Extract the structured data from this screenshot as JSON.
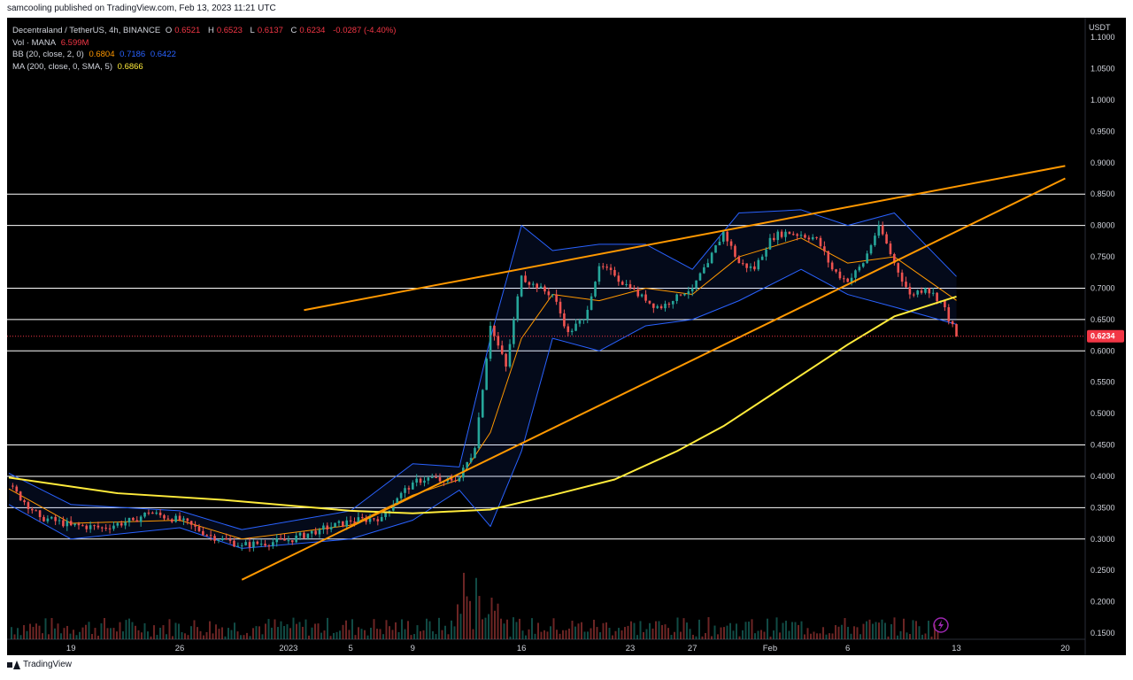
{
  "header": {
    "published_by": "samcooling published on TradingView.com, Feb 13, 2023 11:21 UTC"
  },
  "legend": {
    "symbol": "Decentraland / TetherUS, 4h, BINANCE",
    "ohlc": {
      "o_label": "O",
      "o": "0.6521",
      "h_label": "H",
      "h": "0.6523",
      "l_label": "L",
      "l": "0.6137",
      "c_label": "C",
      "c": "0.6234",
      "change": "-0.0287 (-4.40%)"
    },
    "volume": {
      "label": "Vol · MANA",
      "value": "6.599M"
    },
    "bb": {
      "label": "BB (20, close, 2, 0)",
      "basis": "0.6804",
      "upper": "0.7186",
      "lower": "0.6422"
    },
    "ma": {
      "label": "MA (200, close, 0, SMA, 5)",
      "value": "0.6866"
    }
  },
  "footer": {
    "brand": "TradingView"
  },
  "colors": {
    "background": "#000000",
    "up": "#26a69a",
    "down": "#ef5350",
    "bb_basis": "#ff9800",
    "bb_band": "#2962ff",
    "ma": "#ffeb3b",
    "trendline": "#ff9800",
    "hline": "#ffffff",
    "price_tag": "#f23645"
  },
  "chart_data": {
    "type": "candlestick",
    "currency": "USDT",
    "x_tick_labels": [
      "19",
      "26",
      "2023",
      "5",
      "9",
      "16",
      "23",
      "27",
      "Feb",
      "6",
      "13",
      "20"
    ],
    "y_ticks": [
      "1.1000",
      "1.0500",
      "1.0000",
      "0.9500",
      "0.9000",
      "0.8500",
      "0.8000",
      "0.7500",
      "0.7000",
      "0.6500",
      "0.6000",
      "0.5500",
      "0.5000",
      "0.4500",
      "0.4000",
      "0.3500",
      "0.3000",
      "0.2500",
      "0.2000",
      "0.1500"
    ],
    "ylim": [
      0.15,
      1.12
    ],
    "last_price": "0.6234",
    "horizontal_levels": [
      "0.8500",
      "0.8000",
      "0.7000",
      "0.6500",
      "0.6000",
      "0.4500",
      "0.4000",
      "0.3500",
      "0.3000"
    ],
    "close_series": [
      {
        "date": "Dec 15",
        "close": 0.385
      },
      {
        "date": "Dec 17",
        "close": 0.335
      },
      {
        "date": "Dec 19",
        "close": 0.322
      },
      {
        "date": "Dec 21",
        "close": 0.318
      },
      {
        "date": "Dec 23",
        "close": 0.33
      },
      {
        "date": "Dec 24",
        "close": 0.342
      },
      {
        "date": "Dec 26",
        "close": 0.33
      },
      {
        "date": "Dec 28",
        "close": 0.305
      },
      {
        "date": "Dec 30",
        "close": 0.29
      },
      {
        "date": "Jan 1",
        "close": 0.298
      },
      {
        "date": "Jan 3",
        "close": 0.315
      },
      {
        "date": "Jan 5",
        "close": 0.328
      },
      {
        "date": "Jan 7",
        "close": 0.335
      },
      {
        "date": "Jan 8",
        "close": 0.365
      },
      {
        "date": "Jan 9",
        "close": 0.39
      },
      {
        "date": "Jan 10",
        "close": 0.398
      },
      {
        "date": "Jan 11",
        "close": 0.392
      },
      {
        "date": "Jan 12",
        "close": 0.398
      },
      {
        "date": "Jan 13",
        "close": 0.445
      },
      {
        "date": "Jan 14",
        "close": 0.64
      },
      {
        "date": "Jan 15",
        "close": 0.575
      },
      {
        "date": "Jan 16",
        "close": 0.72
      },
      {
        "date": "Jan 17",
        "close": 0.7
      },
      {
        "date": "Jan 18",
        "close": 0.69
      },
      {
        "date": "Jan 19",
        "close": 0.63
      },
      {
        "date": "Jan 20",
        "close": 0.65
      },
      {
        "date": "Jan 21",
        "close": 0.735
      },
      {
        "date": "Jan 22",
        "close": 0.72
      },
      {
        "date": "Jan 23",
        "close": 0.7
      },
      {
        "date": "Jan 24",
        "close": 0.68
      },
      {
        "date": "Jan 25",
        "close": 0.668
      },
      {
        "date": "Jan 26",
        "close": 0.69
      },
      {
        "date": "Jan 27",
        "close": 0.7
      },
      {
        "date": "Jan 28",
        "close": 0.74
      },
      {
        "date": "Jan 29",
        "close": 0.79
      },
      {
        "date": "Jan 30",
        "close": 0.74
      },
      {
        "date": "Jan 31",
        "close": 0.73
      },
      {
        "date": "Feb 1",
        "close": 0.78
      },
      {
        "date": "Feb 2",
        "close": 0.79
      },
      {
        "date": "Feb 3",
        "close": 0.785
      },
      {
        "date": "Feb 4",
        "close": 0.78
      },
      {
        "date": "Feb 5",
        "close": 0.73
      },
      {
        "date": "Feb 6",
        "close": 0.71
      },
      {
        "date": "Feb 7",
        "close": 0.74
      },
      {
        "date": "Feb 8",
        "close": 0.8
      },
      {
        "date": "Feb 9",
        "close": 0.74
      },
      {
        "date": "Feb 10",
        "close": 0.69
      },
      {
        "date": "Feb 11",
        "close": 0.7
      },
      {
        "date": "Feb 12",
        "close": 0.68
      },
      {
        "date": "Feb 13",
        "close": 0.6234
      }
    ],
    "ma200_series": [
      {
        "date": "Dec 15",
        "value": 0.398
      },
      {
        "date": "Dec 22",
        "value": 0.373
      },
      {
        "date": "Dec 29",
        "value": 0.362
      },
      {
        "date": "Jan 5",
        "value": 0.345
      },
      {
        "date": "Jan 9",
        "value": 0.341
      },
      {
        "date": "Jan 14",
        "value": 0.347
      },
      {
        "date": "Jan 18",
        "value": 0.37
      },
      {
        "date": "Jan 22",
        "value": 0.395
      },
      {
        "date": "Jan 26",
        "value": 0.44
      },
      {
        "date": "Jan 29",
        "value": 0.48
      },
      {
        "date": "Feb 2",
        "value": 0.545
      },
      {
        "date": "Feb 6",
        "value": 0.61
      },
      {
        "date": "Feb 9",
        "value": 0.655
      },
      {
        "date": "Feb 13",
        "value": 0.6866
      }
    ],
    "bb_basis_series": [
      {
        "date": "Dec 15",
        "value": 0.38
      },
      {
        "date": "Dec 19",
        "value": 0.325
      },
      {
        "date": "Dec 26",
        "value": 0.33
      },
      {
        "date": "Dec 30",
        "value": 0.3
      },
      {
        "date": "Jan 5",
        "value": 0.322
      },
      {
        "date": "Jan 9",
        "value": 0.37
      },
      {
        "date": "Jan 12",
        "value": 0.395
      },
      {
        "date": "Jan 14",
        "value": 0.47
      },
      {
        "date": "Jan 16",
        "value": 0.62
      },
      {
        "date": "Jan 18",
        "value": 0.69
      },
      {
        "date": "Jan 21",
        "value": 0.68
      },
      {
        "date": "Jan 24",
        "value": 0.7
      },
      {
        "date": "Jan 27",
        "value": 0.69
      },
      {
        "date": "Jan 30",
        "value": 0.75
      },
      {
        "date": "Feb 3",
        "value": 0.78
      },
      {
        "date": "Feb 6",
        "value": 0.74
      },
      {
        "date": "Feb 9",
        "value": 0.75
      },
      {
        "date": "Feb 13",
        "value": 0.6804
      }
    ],
    "bb_upper_series": [
      {
        "date": "Dec 15",
        "value": 0.405
      },
      {
        "date": "Dec 19",
        "value": 0.355
      },
      {
        "date": "Dec 26",
        "value": 0.345
      },
      {
        "date": "Dec 30",
        "value": 0.315
      },
      {
        "date": "Jan 5",
        "value": 0.345
      },
      {
        "date": "Jan 9",
        "value": 0.42
      },
      {
        "date": "Jan 12",
        "value": 0.415
      },
      {
        "date": "Jan 14",
        "value": 0.62
      },
      {
        "date": "Jan 16",
        "value": 0.8
      },
      {
        "date": "Jan 18",
        "value": 0.76
      },
      {
        "date": "Jan 21",
        "value": 0.77
      },
      {
        "date": "Jan 24",
        "value": 0.77
      },
      {
        "date": "Jan 27",
        "value": 0.73
      },
      {
        "date": "Jan 30",
        "value": 0.82
      },
      {
        "date": "Feb 3",
        "value": 0.825
      },
      {
        "date": "Feb 6",
        "value": 0.8
      },
      {
        "date": "Feb 9",
        "value": 0.82
      },
      {
        "date": "Feb 13",
        "value": 0.7186
      }
    ],
    "bb_lower_series": [
      {
        "date": "Dec 15",
        "value": 0.355
      },
      {
        "date": "Dec 19",
        "value": 0.3
      },
      {
        "date": "Dec 26",
        "value": 0.318
      },
      {
        "date": "Dec 30",
        "value": 0.285
      },
      {
        "date": "Jan 5",
        "value": 0.3
      },
      {
        "date": "Jan 9",
        "value": 0.33
      },
      {
        "date": "Jan 12",
        "value": 0.378
      },
      {
        "date": "Jan 14",
        "value": 0.32
      },
      {
        "date": "Jan 16",
        "value": 0.44
      },
      {
        "date": "Jan 18",
        "value": 0.62
      },
      {
        "date": "Jan 21",
        "value": 0.6
      },
      {
        "date": "Jan 24",
        "value": 0.64
      },
      {
        "date": "Jan 27",
        "value": 0.65
      },
      {
        "date": "Jan 30",
        "value": 0.68
      },
      {
        "date": "Feb 3",
        "value": 0.73
      },
      {
        "date": "Feb 6",
        "value": 0.69
      },
      {
        "date": "Feb 9",
        "value": 0.67
      },
      {
        "date": "Feb 13",
        "value": 0.6422
      }
    ],
    "trendlines": [
      {
        "name": "upper-channel",
        "from": {
          "date": "Jan 2",
          "value": 0.665
        },
        "to": {
          "date": "Feb 20",
          "value": 0.895
        }
      },
      {
        "name": "lower-channel",
        "from": {
          "date": "Dec 30",
          "value": 0.235
        },
        "to": {
          "date": "Feb 20",
          "value": 0.875
        }
      }
    ]
  }
}
